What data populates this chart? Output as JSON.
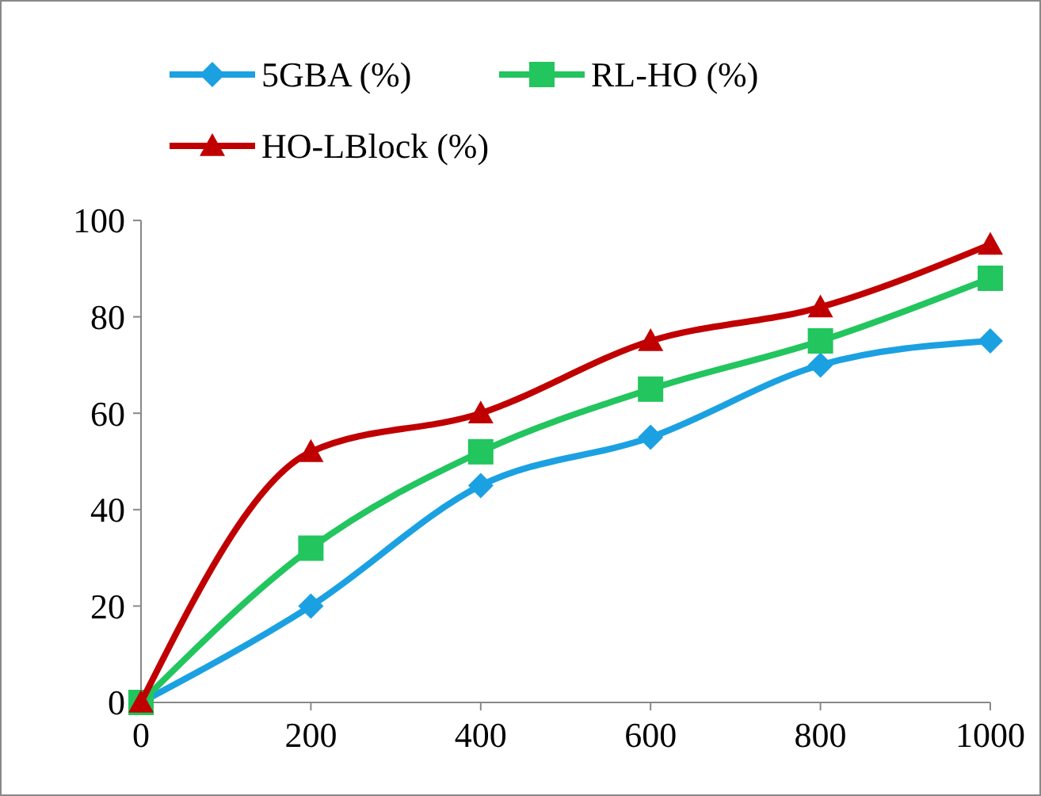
{
  "chart_data": {
    "type": "line",
    "x": [
      0,
      200,
      400,
      600,
      800,
      1000
    ],
    "xlim": [
      0,
      1000
    ],
    "xticks": [
      0,
      200,
      400,
      600,
      800,
      1000
    ],
    "ylim": [
      0,
      100
    ],
    "yticks": [
      0,
      20,
      40,
      60,
      80,
      100
    ],
    "grid": false,
    "legend": "top",
    "line_style": "solid",
    "series": [
      {
        "name": "5GBA (%)",
        "color": "#1ba1e2",
        "marker": "diamond",
        "values": [
          0,
          20,
          45,
          55,
          70,
          75
        ]
      },
      {
        "name": "RL-HO (%)",
        "color": "#22c55e",
        "marker": "square",
        "values": [
          0,
          32,
          52,
          65,
          75,
          88
        ]
      },
      {
        "name": "HO-LBlock (%)",
        "color": "#c00000",
        "marker": "triangle",
        "values": [
          0,
          52,
          60,
          75,
          82,
          95
        ]
      }
    ]
  }
}
